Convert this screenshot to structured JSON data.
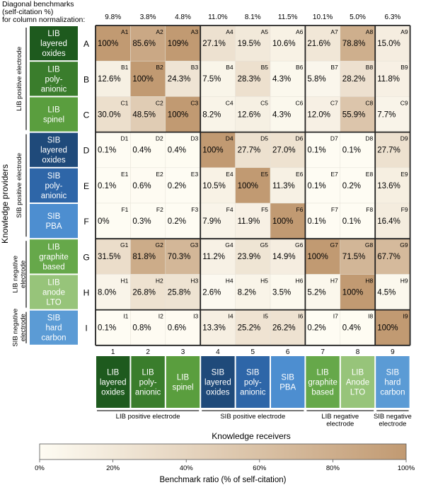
{
  "header": {
    "line1": "Diagonal benchmarks",
    "line2": "(self-citation %)",
    "line3": "for column normalization:"
  },
  "chart_data": {
    "type": "heatmap",
    "benchmarks": [
      "9.8%",
      "3.8%",
      "4.8%",
      "11.0%",
      "8.1%",
      "11.5%",
      "10.1%",
      "5.0%",
      "6.3%"
    ],
    "row_letters": [
      "A",
      "B",
      "C",
      "D",
      "E",
      "F",
      "G",
      "H",
      "I"
    ],
    "col_numbers": [
      "1",
      "2",
      "3",
      "4",
      "5",
      "6",
      "7",
      "8",
      "9"
    ],
    "cell_ids": [
      [
        "A1",
        "A2",
        "A3",
        "A4",
        "A5",
        "A6",
        "A7",
        "A8",
        "A9"
      ],
      [
        "B1",
        "B2",
        "B3",
        "B4",
        "B5",
        "B6",
        "B7",
        "B8",
        "B9"
      ],
      [
        "C1",
        "C2",
        "C3",
        "C4",
        "C5",
        "C6",
        "C7",
        "C8",
        "C9"
      ],
      [
        "D1",
        "D2",
        "D3",
        "D4",
        "D5",
        "D6",
        "D7",
        "D8",
        "D9"
      ],
      [
        "E1",
        "E2",
        "E3",
        "E4",
        "E5",
        "E6",
        "E7",
        "E8",
        "E9"
      ],
      [
        "F1",
        "F2",
        "F3",
        "F4",
        "F5",
        "F6",
        "F7",
        "F8",
        "F9"
      ],
      [
        "G1",
        "G2",
        "G3",
        "G4",
        "G5",
        "G6",
        "G7",
        "G8",
        "G9"
      ],
      [
        "H1",
        "H2",
        "H3",
        "H4",
        "H5",
        "H6",
        "H7",
        "H8",
        "H9"
      ],
      [
        "I1",
        "I2",
        "I3",
        "I4",
        "I5",
        "I6",
        "I7",
        "I8",
        "I9"
      ]
    ],
    "values": [
      [
        100,
        85.6,
        109,
        27.1,
        19.5,
        10.6,
        21.6,
        78.8,
        15.0
      ],
      [
        12.6,
        100,
        24.3,
        7.5,
        28.3,
        4.3,
        5.8,
        28.2,
        11.8
      ],
      [
        30.0,
        48.5,
        100,
        8.2,
        12.6,
        4.3,
        12.0,
        55.9,
        7.7
      ],
      [
        0.1,
        0.4,
        0.4,
        100,
        27.7,
        27.0,
        0.1,
        0.1,
        27.7
      ],
      [
        0.1,
        0.6,
        0.2,
        10.5,
        100,
        11.3,
        0.1,
        0.2,
        13.6
      ],
      [
        0,
        0.3,
        0.2,
        7.9,
        11.9,
        100,
        0.1,
        0.1,
        16.4
      ],
      [
        31.5,
        81.8,
        70.3,
        11.2,
        23.9,
        14.9,
        100,
        71.5,
        67.7
      ],
      [
        8.0,
        26.8,
        25.8,
        2.6,
        8.2,
        3.5,
        5.2,
        100,
        4.5
      ],
      [
        0.1,
        0.8,
        0.6,
        13.3,
        25.2,
        26.2,
        0.2,
        0.4,
        100
      ]
    ],
    "labels": [
      [
        "100%",
        "85.6%",
        "109%",
        "27.1%",
        "19.5%",
        "10.6%",
        "21.6%",
        "78.8%",
        "15.0%"
      ],
      [
        "12.6%",
        "100%",
        "24.3%",
        "7.5%",
        "28.3%",
        "4.3%",
        "5.8%",
        "28.2%",
        "11.8%"
      ],
      [
        "30.0%",
        "48.5%",
        "100%",
        "8.2%",
        "12.6%",
        "4.3%",
        "12.0%",
        "55.9%",
        "7.7%"
      ],
      [
        "0.1%",
        "0.4%",
        "0.4%",
        "100%",
        "27.7%",
        "27.0%",
        "0.1%",
        "0.1%",
        "27.7%"
      ],
      [
        "0.1%",
        "0.6%",
        "0.2%",
        "10.5%",
        "100%",
        "11.3%",
        "0.1%",
        "0.2%",
        "13.6%"
      ],
      [
        "0%",
        "0.3%",
        "0.2%",
        "7.9%",
        "11.9%",
        "100%",
        "0.1%",
        "0.1%",
        "16.4%"
      ],
      [
        "31.5%",
        "81.8%",
        "70.3%",
        "11.2%",
        "23.9%",
        "14.9%",
        "100%",
        "71.5%",
        "67.7%"
      ],
      [
        "8.0%",
        "26.8%",
        "25.8%",
        "2.6%",
        "8.2%",
        "3.5%",
        "5.2%",
        "100%",
        "4.5%"
      ],
      [
        "0.1%",
        "0.8%",
        "0.6%",
        "13.3%",
        "25.2%",
        "26.2%",
        "0.2%",
        "0.4%",
        "100%"
      ]
    ],
    "row_category_labels": [
      [
        "LIB",
        "layered",
        "oxides"
      ],
      [
        "LIB",
        "poly-",
        "anionic"
      ],
      [
        "LIB",
        "spinel"
      ],
      [
        "SIB",
        "layered",
        "oxides"
      ],
      [
        "SIB",
        "poly-",
        "anionic"
      ],
      [
        "SIB",
        "PBA"
      ],
      [
        "LIB",
        "graphite",
        "based"
      ],
      [
        "LIB",
        "anode",
        "LTO"
      ],
      [
        "SIB",
        "hard",
        "carbon"
      ]
    ],
    "col_category_labels": [
      [
        "LIB",
        "layered",
        "oxides"
      ],
      [
        "LIB",
        "poly-",
        "anionic"
      ],
      [
        "LIB",
        "spinel"
      ],
      [
        "SIB",
        "layered",
        "oxides"
      ],
      [
        "SIB",
        "poly-",
        "anionic"
      ],
      [
        "SIB",
        "PBA"
      ],
      [
        "LIB",
        "graphite",
        "based"
      ],
      [
        "LIB",
        "Anode",
        "LTO"
      ],
      [
        "SIB",
        "hard",
        "carbon"
      ]
    ],
    "category_colors": [
      "#1e5a1e",
      "#3a7d2c",
      "#5a9e3e",
      "#1f4a7a",
      "#2e66a8",
      "#4d8ed0",
      "#66a84a",
      "#97c47a",
      "#5b9bd5"
    ],
    "row_groups": [
      {
        "lines": [
          "LIB positive electrode"
        ]
      },
      {
        "lines": [
          "SIB positive electrode"
        ]
      },
      {
        "lines": [
          "LIB negative",
          "electrode"
        ]
      },
      {
        "lines": [
          "SIB negative",
          "electrode"
        ]
      }
    ],
    "col_groups": [
      {
        "lines": [
          "LIB positive electrode"
        ]
      },
      {
        "lines": [
          "SIB positive electrode"
        ]
      },
      {
        "lines": [
          "LIB negative",
          "electrode"
        ]
      },
      {
        "lines": [
          "SIB negative",
          "electrode"
        ]
      }
    ],
    "ylabel": "Knowledge providers",
    "xlabel": "Knowledge receivers",
    "colorbar": {
      "label": "Benchmark ratio (% of self-citation)",
      "ticks": [
        "0%",
        "20%",
        "40%",
        "60%",
        "80%",
        "100%"
      ],
      "range": [
        0,
        100
      ],
      "low_color": "#fefcf3",
      "high_color": "#c19a72"
    }
  }
}
